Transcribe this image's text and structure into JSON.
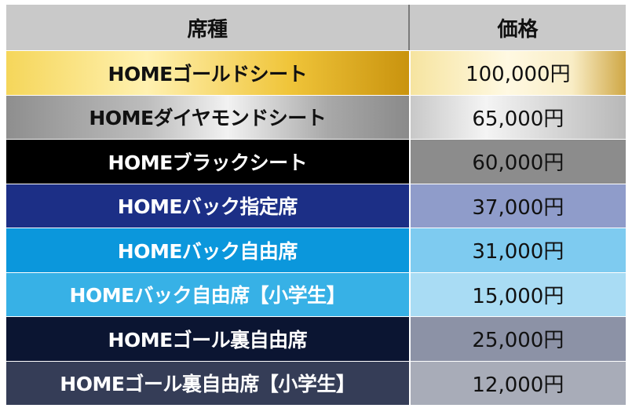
{
  "header": {
    "seat_label": "席種",
    "price_label": "価格"
  },
  "rows": [
    {
      "seat": "HOMEゴールドシート",
      "price": "100,000円"
    },
    {
      "seat": "HOMEダイヤモンドシート",
      "price": "65,000円"
    },
    {
      "seat": "HOMEブラックシート",
      "price": "60,000円"
    },
    {
      "seat": "HOMEバック指定席",
      "price": "37,000円"
    },
    {
      "seat": "HOMEバック自由席",
      "price": "31,000円"
    },
    {
      "seat": "HOMEバック自由席【小学生】",
      "price": "15,000円"
    },
    {
      "seat": "HOMEゴール裏自由席",
      "price": "25,000円"
    },
    {
      "seat": "HOMEゴール裏自由席【小学生】",
      "price": "12,000円"
    }
  ],
  "colors": {
    "header_bg": "#c9c9c9",
    "gold": "#f0c53a",
    "diamond": "#bdbdbd",
    "black": "#000000",
    "back_reserved": "#1c2f86",
    "back_free": "#0b97dc",
    "back_free_kid": "#37b1e6",
    "goal_free": "#0b1532",
    "goal_free_kid": "#353d57"
  }
}
